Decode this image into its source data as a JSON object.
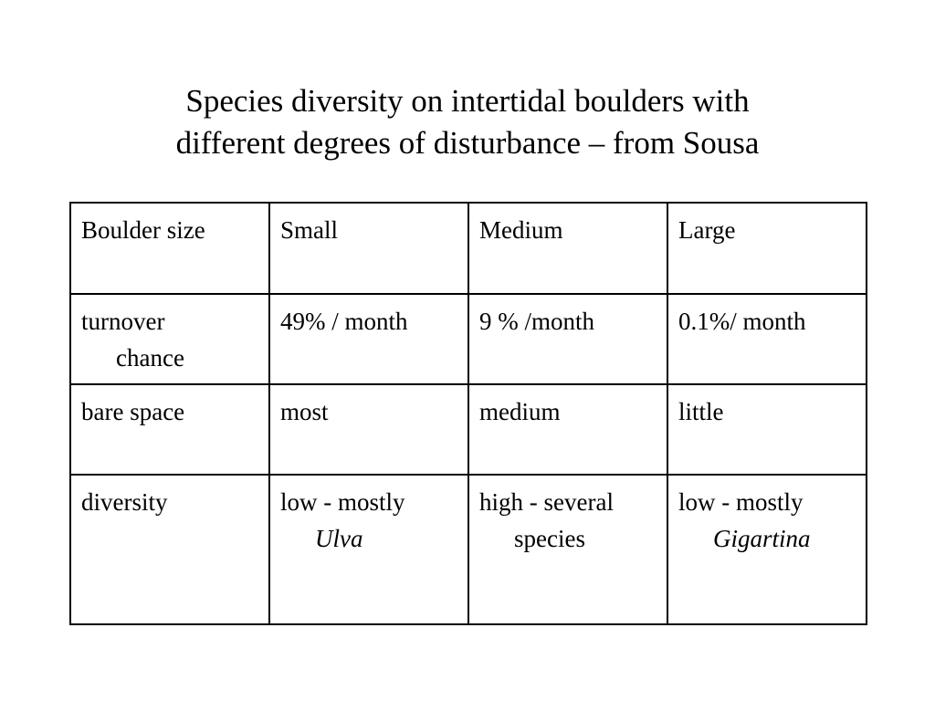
{
  "slide": {
    "title_line1": "Species diversity on intertidal boulders with",
    "title_line2": "different degrees of disturbance – from Sousa"
  },
  "table": {
    "header": [
      "Boulder size",
      "Small",
      "Medium",
      "Large"
    ],
    "rows": [
      {
        "label_line1": "turnover",
        "label_line2": "chance",
        "cells": [
          {
            "line1": "49% / month",
            "line2": ""
          },
          {
            "line1": "9 % /month",
            "line2": ""
          },
          {
            "line1": "0.1%/ month",
            "line2": ""
          }
        ]
      },
      {
        "label_line1": "bare space",
        "label_line2": "",
        "cells": [
          {
            "line1": "most",
            "line2": ""
          },
          {
            "line1": "medium",
            "line2": ""
          },
          {
            "line1": "little",
            "line2": ""
          }
        ]
      },
      {
        "label_line1": "diversity",
        "label_line2": "",
        "cells": [
          {
            "line1": "low - mostly",
            "line2": "Ulva"
          },
          {
            "line1": "high - several",
            "line2": "species"
          },
          {
            "line1": "low  - mostly",
            "line2": "Gigartina"
          }
        ]
      }
    ]
  }
}
